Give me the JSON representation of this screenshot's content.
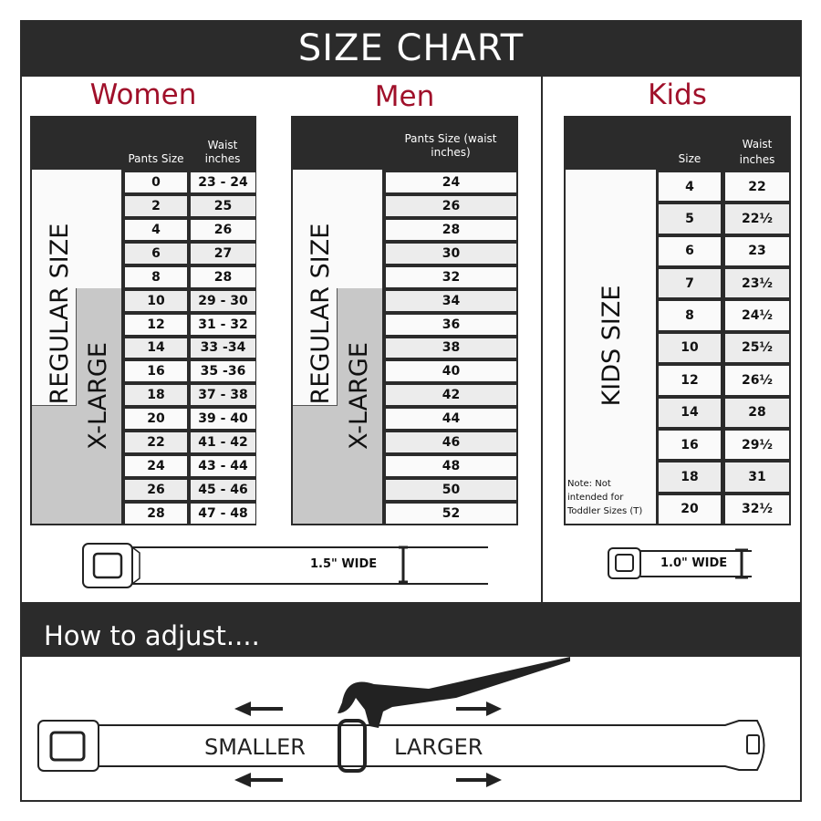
{
  "title": "SIZE CHART",
  "colors": {
    "accent": "#a0102a",
    "dark": "#2b2b2b",
    "row_alt": "#ececec",
    "xlarge_fill": "#c8c8c8"
  },
  "women": {
    "heading": "Women",
    "col_headers": [
      "Pants Size",
      "Waist inches"
    ],
    "regular_label": "REGULAR SIZE",
    "xlarge_label": "X-LARGE",
    "rows": [
      [
        "0",
        "23 - 24"
      ],
      [
        "2",
        "25"
      ],
      [
        "4",
        "26"
      ],
      [
        "6",
        "27"
      ],
      [
        "8",
        "28"
      ],
      [
        "10",
        "29 - 30"
      ],
      [
        "12",
        "31 - 32"
      ],
      [
        "14",
        "33 -34"
      ],
      [
        "16",
        "35 -36"
      ],
      [
        "18",
        "37 - 38"
      ],
      [
        "20",
        "39 - 40"
      ],
      [
        "22",
        "41 - 42"
      ],
      [
        "24",
        "43 - 44"
      ],
      [
        "26",
        "45 - 46"
      ],
      [
        "28",
        "47 - 48"
      ]
    ]
  },
  "men": {
    "heading": "Men",
    "col_header": "Pants Size (waist inches)",
    "regular_label": "REGULAR SIZE",
    "xlarge_label": "X-LARGE",
    "rows": [
      "24",
      "26",
      "28",
      "30",
      "32",
      "34",
      "36",
      "38",
      "40",
      "42",
      "44",
      "46",
      "48",
      "50",
      "52"
    ]
  },
  "kids": {
    "heading": "Kids",
    "col_headers": [
      "Size",
      "Waist inches"
    ],
    "label": "KIDS SIZE",
    "note": "Note: Not intended for Toddler Sizes (T)",
    "rows": [
      [
        "4",
        "22"
      ],
      [
        "5",
        "22½"
      ],
      [
        "6",
        "23"
      ],
      [
        "7",
        "23½"
      ],
      [
        "8",
        "24½"
      ],
      [
        "10",
        "25½"
      ],
      [
        "12",
        "26½"
      ],
      [
        "14",
        "28"
      ],
      [
        "16",
        "29½"
      ],
      [
        "18",
        "31"
      ],
      [
        "20",
        "32½"
      ]
    ]
  },
  "belts": {
    "adult_width": "1.5\" WIDE",
    "kids_width": "1.0\" WIDE"
  },
  "adjust": {
    "heading": "How to adjust....",
    "smaller": "SMALLER",
    "larger": "LARGER"
  }
}
